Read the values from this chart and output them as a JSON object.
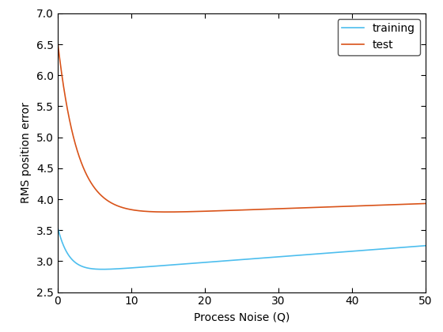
{
  "title": "",
  "xlabel": "Process Noise (Q)",
  "ylabel": "RMS position error",
  "xlim": [
    0,
    50
  ],
  "ylim": [
    2.5,
    7
  ],
  "yticks": [
    2.5,
    3.0,
    3.5,
    4.0,
    4.5,
    5.0,
    5.5,
    6.0,
    6.5,
    7.0
  ],
  "xticks": [
    0,
    10,
    20,
    30,
    40,
    50
  ],
  "training_color": "#4DBEEE",
  "test_color": "#D95319",
  "legend_labels": [
    "training",
    "test"
  ],
  "background_color": "#ffffff",
  "figsize": [
    5.6,
    4.2
  ],
  "dpi": 100
}
